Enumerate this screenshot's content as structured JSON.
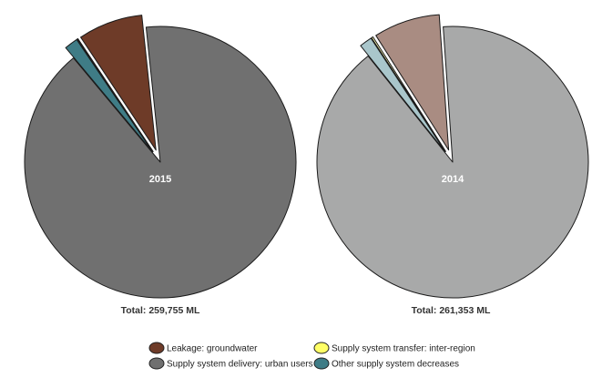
{
  "chart_data": [
    {
      "type": "pie",
      "center_label": "2015",
      "total_label": "Total: 259,755 ML",
      "slices": [
        {
          "name": "Supply system delivery: urban users",
          "value": 90.6,
          "color": "#707070"
        },
        {
          "name": "Other supply system decreases",
          "value": 1.6,
          "color": "#3f7c86"
        },
        {
          "name": "Supply system transfer: inter-region",
          "value": 0.1,
          "color": "#ffff66"
        },
        {
          "name": "Leakage: groundwater",
          "value": 7.7,
          "color": "#6e3b28"
        }
      ]
    },
    {
      "type": "pie",
      "center_label": "2014",
      "total_label": "Total: 261,353 ML",
      "slices": [
        {
          "name": "Supply system delivery: urban users",
          "value": 90.4,
          "color": "#a8a9a9"
        },
        {
          "name": "Other supply system decreases",
          "value": 1.5,
          "color": "#a9c6cb"
        },
        {
          "name": "Supply system transfer: inter-region",
          "value": 0.2,
          "color": "#ffffb3"
        },
        {
          "name": "Leakage: groundwater",
          "value": 7.9,
          "color": "#a98c82"
        }
      ]
    }
  ],
  "legend": {
    "items": [
      {
        "label": "Leakage: groundwater",
        "color": "#6e3b28"
      },
      {
        "label": "Supply system transfer: inter-region",
        "color": "#ffff66"
      },
      {
        "label": "Supply system delivery: urban users",
        "color": "#707070"
      },
      {
        "label": "Other supply system decreases",
        "color": "#3f7c86"
      }
    ]
  }
}
